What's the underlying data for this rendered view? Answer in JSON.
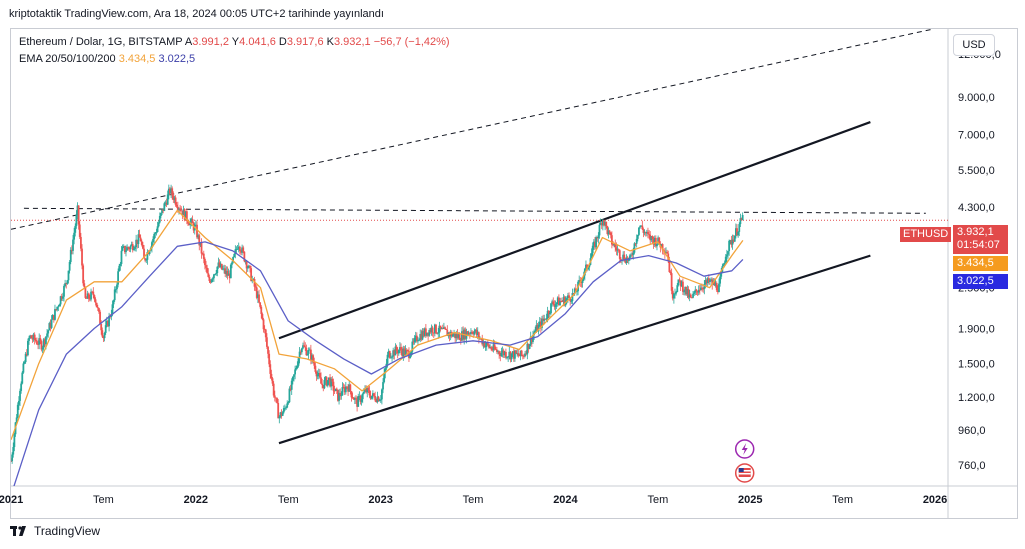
{
  "header": {
    "published": "kriptotaktik TradingView.com, Ara 18, 2024 00:05 UTC+2 tarihinde yayınlandı"
  },
  "legend": {
    "symbol": "Ethereum / Dolar, 1G, BITSTAMP",
    "open_label": "A",
    "open": "3.991,2",
    "high_label": "Y",
    "high": "4.041,6",
    "low_label": "D",
    "low": "3.917,6",
    "close_label": "K",
    "close": "3.932,1",
    "change": "−56,7 (−1,42%)",
    "ema_label": "EMA 20/50/100/200",
    "ema_fast": "3.434,5",
    "ema_slow": "3.022,5"
  },
  "currency_button": "USD",
  "price_labels": {
    "symbol_tag": "ETHUSD",
    "last_price": "3.932,1",
    "countdown": "01:54:07",
    "ema_fast": "3.434,5",
    "ema_slow": "3.022,5"
  },
  "colors": {
    "up": "#26a69a",
    "down": "#ef5350",
    "ema_fast": "#f2a33a",
    "ema_slow": "#5b5fc7",
    "tag": "#e24a4a",
    "slow_tag": "#2a2ae0"
  },
  "footer": {
    "brand": "TradingView"
  },
  "chart_data": {
    "type": "candlestick",
    "title": "Ethereum / Dolar, 1G, BITSTAMP",
    "scale": "log",
    "y_ticks": [
      12000,
      9000,
      7000,
      5500,
      4300,
      2500,
      1900,
      1500,
      1200,
      960,
      760
    ],
    "y_tick_labels": [
      "12.000,0",
      "9.000,0",
      "7.000,0",
      "5.500,0",
      "4.300,0",
      "2.500,0",
      "1.900,0",
      "1.500,0",
      "1.200,0",
      "960,0",
      "760,0"
    ],
    "x_ticks": [
      2021.0,
      2021.5,
      2022.0,
      2022.5,
      2023.0,
      2023.5,
      2024.0,
      2024.5,
      2025.0,
      2025.5,
      2026.0
    ],
    "x_tick_labels": [
      "2021",
      "Tem",
      "2022",
      "Tem",
      "2023",
      "Tem",
      "2024",
      "Tem",
      "2025",
      "Tem",
      "2026"
    ],
    "x_range": [
      2021.0,
      2026.07
    ],
    "y_range": [
      660,
      14200
    ],
    "price_path": [
      [
        2021.0,
        780
      ],
      [
        2021.05,
        1300
      ],
      [
        2021.1,
        1800
      ],
      [
        2021.17,
        1700
      ],
      [
        2021.25,
        2200
      ],
      [
        2021.3,
        2600
      ],
      [
        2021.36,
        4200
      ],
      [
        2021.4,
        2300
      ],
      [
        2021.45,
        2400
      ],
      [
        2021.5,
        1800
      ],
      [
        2021.55,
        2200
      ],
      [
        2021.6,
        3200
      ],
      [
        2021.65,
        3300
      ],
      [
        2021.7,
        3500
      ],
      [
        2021.72,
        3000
      ],
      [
        2021.78,
        3600
      ],
      [
        2021.82,
        4200
      ],
      [
        2021.86,
        4800
      ],
      [
        2021.9,
        4400
      ],
      [
        2021.95,
        4000
      ],
      [
        2022.0,
        3700
      ],
      [
        2022.03,
        3200
      ],
      [
        2022.07,
        2600
      ],
      [
        2022.12,
        2900
      ],
      [
        2022.18,
        2700
      ],
      [
        2022.23,
        3400
      ],
      [
        2022.28,
        2900
      ],
      [
        2022.33,
        2400
      ],
      [
        2022.37,
        1900
      ],
      [
        2022.42,
        1250
      ],
      [
        2022.45,
        1050
      ],
      [
        2022.48,
        1100
      ],
      [
        2022.52,
        1300
      ],
      [
        2022.57,
        1700
      ],
      [
        2022.62,
        1600
      ],
      [
        2022.68,
        1300
      ],
      [
        2022.72,
        1350
      ],
      [
        2022.77,
        1200
      ],
      [
        2022.82,
        1300
      ],
      [
        2022.87,
        1150
      ],
      [
        2022.92,
        1250
      ],
      [
        2022.96,
        1200
      ],
      [
        2023.0,
        1200
      ],
      [
        2023.04,
        1600
      ],
      [
        2023.1,
        1650
      ],
      [
        2023.15,
        1600
      ],
      [
        2023.2,
        1800
      ],
      [
        2023.28,
        1900
      ],
      [
        2023.35,
        1850
      ],
      [
        2023.42,
        1800
      ],
      [
        2023.5,
        1880
      ],
      [
        2023.57,
        1700
      ],
      [
        2023.63,
        1630
      ],
      [
        2023.7,
        1600
      ],
      [
        2023.77,
        1580
      ],
      [
        2023.83,
        1850
      ],
      [
        2023.88,
        2000
      ],
      [
        2023.93,
        2250
      ],
      [
        2024.0,
        2300
      ],
      [
        2024.05,
        2400
      ],
      [
        2024.12,
        2900
      ],
      [
        2024.17,
        3500
      ],
      [
        2024.2,
        4000
      ],
      [
        2024.25,
        3400
      ],
      [
        2024.3,
        3100
      ],
      [
        2024.35,
        3000
      ],
      [
        2024.4,
        3800
      ],
      [
        2024.45,
        3500
      ],
      [
        2024.5,
        3400
      ],
      [
        2024.55,
        3200
      ],
      [
        2024.58,
        2400
      ],
      [
        2024.62,
        2600
      ],
      [
        2024.68,
        2300
      ],
      [
        2024.72,
        2500
      ],
      [
        2024.78,
        2600
      ],
      [
        2024.83,
        2500
      ],
      [
        2024.87,
        3200
      ],
      [
        2024.92,
        3600
      ],
      [
        2024.96,
        4000
      ]
    ],
    "ema_fast_path": [
      [
        2021.0,
        900
      ],
      [
        2021.15,
        1500
      ],
      [
        2021.3,
        2300
      ],
      [
        2021.45,
        2600
      ],
      [
        2021.6,
        2600
      ],
      [
        2021.75,
        3200
      ],
      [
        2021.9,
        4200
      ],
      [
        2022.05,
        3500
      ],
      [
        2022.2,
        3000
      ],
      [
        2022.35,
        2500
      ],
      [
        2022.45,
        1600
      ],
      [
        2022.6,
        1550
      ],
      [
        2022.75,
        1450
      ],
      [
        2022.9,
        1250
      ],
      [
        2023.05,
        1450
      ],
      [
        2023.2,
        1700
      ],
      [
        2023.4,
        1850
      ],
      [
        2023.6,
        1750
      ],
      [
        2023.75,
        1650
      ],
      [
        2023.9,
        2000
      ],
      [
        2024.05,
        2400
      ],
      [
        2024.2,
        3500
      ],
      [
        2024.35,
        3200
      ],
      [
        2024.5,
        3400
      ],
      [
        2024.62,
        2700
      ],
      [
        2024.78,
        2500
      ],
      [
        2024.9,
        3100
      ],
      [
        2024.96,
        3434.5
      ]
    ],
    "ema_slow_path": [
      [
        2021.0,
        620
      ],
      [
        2021.15,
        1100
      ],
      [
        2021.3,
        1600
      ],
      [
        2021.45,
        1900
      ],
      [
        2021.6,
        2200
      ],
      [
        2021.75,
        2700
      ],
      [
        2021.9,
        3300
      ],
      [
        2022.05,
        3400
      ],
      [
        2022.2,
        3200
      ],
      [
        2022.35,
        2800
      ],
      [
        2022.5,
        2000
      ],
      [
        2022.65,
        1750
      ],
      [
        2022.8,
        1550
      ],
      [
        2022.95,
        1400
      ],
      [
        2023.1,
        1550
      ],
      [
        2023.3,
        1700
      ],
      [
        2023.5,
        1750
      ],
      [
        2023.7,
        1700
      ],
      [
        2023.85,
        1800
      ],
      [
        2024.0,
        2100
      ],
      [
        2024.15,
        2600
      ],
      [
        2024.3,
        3000
      ],
      [
        2024.45,
        3100
      ],
      [
        2024.6,
        2950
      ],
      [
        2024.75,
        2700
      ],
      [
        2024.9,
        2800
      ],
      [
        2024.96,
        3022.5
      ]
    ],
    "trendlines": [
      {
        "name": "channel-upper",
        "style": "solid",
        "from": [
          2022.45,
          1780
        ],
        "to": [
          2025.65,
          7600
        ]
      },
      {
        "name": "channel-lower",
        "style": "solid",
        "from": [
          2022.45,
          880
        ],
        "to": [
          2025.65,
          3100
        ]
      },
      {
        "name": "outer-dashed",
        "style": "dashed",
        "from": [
          2021.0,
          3700
        ],
        "to": [
          2025.99,
          14200
        ]
      },
      {
        "name": "resistance-dashed",
        "style": "dashed",
        "from": [
          2021.07,
          4260
        ],
        "to": [
          2025.95,
          4120
        ]
      }
    ],
    "last_price": 3932.1,
    "ema_fast": 3434.5,
    "ema_slow": 3022.5,
    "event_icons": [
      {
        "icon": "lightning-icon",
        "x": 2024.97
      },
      {
        "icon": "us-flag-icon",
        "x": 2024.97
      }
    ]
  }
}
